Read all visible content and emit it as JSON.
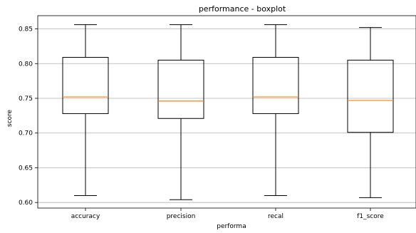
{
  "chart_data": {
    "type": "boxplot",
    "title": "performance - boxplot",
    "xlabel": "performa",
    "ylabel": "score",
    "categories": [
      "accuracy",
      "precision",
      "recal",
      "f1_score"
    ],
    "boxes": [
      {
        "name": "accuracy",
        "whisker_low": 0.61,
        "q1": 0.728,
        "median": 0.752,
        "q3": 0.809,
        "whisker_high": 0.856
      },
      {
        "name": "precision",
        "whisker_low": 0.604,
        "q1": 0.721,
        "median": 0.746,
        "q3": 0.805,
        "whisker_high": 0.856
      },
      {
        "name": "recal",
        "whisker_low": 0.61,
        "q1": 0.728,
        "median": 0.752,
        "q3": 0.809,
        "whisker_high": 0.856
      },
      {
        "name": "f1_score",
        "whisker_low": 0.607,
        "q1": 0.701,
        "median": 0.747,
        "q3": 0.805,
        "whisker_high": 0.852
      }
    ],
    "ylim": [
      0.592,
      0.869
    ],
    "yticks": [
      0.6,
      0.65,
      0.7,
      0.75,
      0.8,
      0.85
    ],
    "ytick_labels": [
      "0.60",
      "0.65",
      "0.70",
      "0.75",
      "0.80",
      "0.85"
    ],
    "grid": "y",
    "colors": {
      "box": "#000000",
      "median": "#ff7f0e",
      "grid": "#b0b0b0"
    }
  }
}
